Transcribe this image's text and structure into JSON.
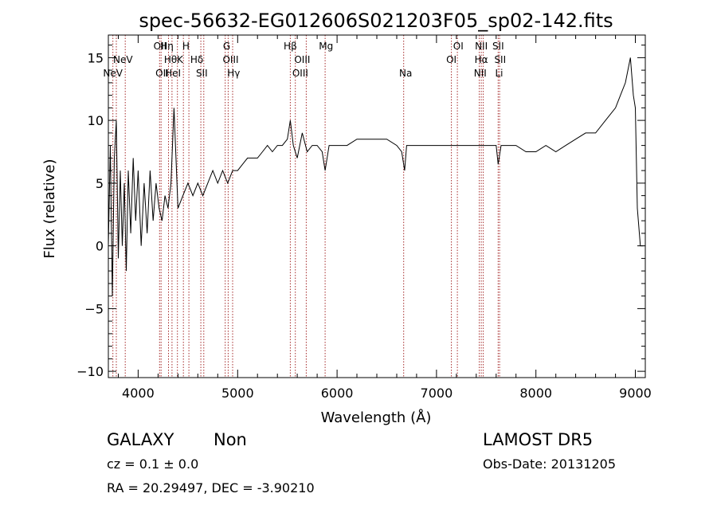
{
  "chart_data": {
    "type": "line",
    "title": "spec-56632-EG012606S021203F05_sp02-142.fits",
    "xlabel": "Wavelength (Å)",
    "ylabel": "Flux (relative)",
    "xlim": [
      3700,
      9100
    ],
    "ylim": [
      -10.5,
      16.8
    ],
    "x_ticks": [
      4000,
      5000,
      6000,
      7000,
      8000,
      9000
    ],
    "y_ticks": [
      -10,
      -5,
      0,
      5,
      10,
      15
    ],
    "grid": false,
    "line_color": "#000000",
    "marker_color": "#a52a2a",
    "series": [
      {
        "x": [
          3700,
          3720,
          3740,
          3760,
          3780,
          3800,
          3820,
          3840,
          3860,
          3880,
          3900,
          3925,
          3950,
          3975,
          4000,
          4030,
          4060,
          4090,
          4120,
          4150,
          4180,
          4210,
          4240,
          4270,
          4300,
          4330,
          4360,
          4400,
          4450,
          4500,
          4550,
          4600,
          4650,
          4700,
          4750,
          4800,
          4850,
          4900,
          4950,
          5000,
          5050,
          5100,
          5150,
          5200,
          5250,
          5300,
          5350,
          5400,
          5450,
          5500,
          5530,
          5560,
          5600,
          5650,
          5700,
          5750,
          5800,
          5850,
          5880,
          5920,
          6000,
          6100,
          6200,
          6300,
          6400,
          6500,
          6600,
          6650,
          6680,
          6700,
          6800,
          6900,
          7000,
          7100,
          7200,
          7300,
          7400,
          7500,
          7600,
          7620,
          7650,
          7700,
          7800,
          7900,
          8000,
          8100,
          8200,
          8300,
          8400,
          8500,
          8600,
          8700,
          8800,
          8850,
          8900,
          8950,
          8980,
          9000,
          9020,
          9050,
          9080
        ],
        "y": [
          0,
          8,
          -4,
          7,
          10,
          -1,
          6,
          0,
          5,
          -2,
          6,
          1,
          7,
          2,
          6,
          0,
          5,
          1,
          6,
          2,
          5,
          3,
          2,
          4,
          3,
          5,
          11,
          3,
          4,
          5,
          4,
          5,
          4,
          5,
          6,
          5,
          6,
          5,
          6,
          6,
          6.5,
          7,
          7,
          7,
          7.5,
          8,
          7.5,
          8,
          8,
          8.5,
          10,
          8,
          7,
          9,
          7.5,
          8,
          8,
          7.5,
          6,
          8,
          8,
          8,
          8.5,
          8.5,
          8.5,
          8.5,
          8,
          7.5,
          6,
          8,
          8,
          8,
          8,
          8,
          8,
          8,
          8,
          8,
          8,
          6.5,
          8,
          8,
          8,
          7.5,
          7.5,
          8,
          7.5,
          8,
          8.5,
          9,
          9,
          10,
          11,
          12,
          13,
          15,
          12,
          11,
          3,
          0,
          0
        ]
      }
    ],
    "lines": [
      {
        "label": "NeV",
        "x": 3746,
        "row": 2
      },
      {
        "label": "NeV",
        "x": 3847,
        "row": 1
      },
      {
        "label": "OII",
        "x": 4220,
        "row": 0
      },
      {
        "label": "OII",
        "x": 4240,
        "row": 2
      },
      {
        "label": "Hη",
        "x": 4290,
        "row": 0
      },
      {
        "label": "Hθ",
        "x": 4325,
        "row": 1
      },
      {
        "label": "HeI",
        "x": 4350,
        "row": 2
      },
      {
        "label": "K",
        "x": 4420,
        "row": 1
      },
      {
        "label": "H",
        "x": 4480,
        "row": 0
      },
      {
        "label": "Hδ",
        "x": 4590,
        "row": 1
      },
      {
        "label": "SII",
        "x": 4640,
        "row": 2
      },
      {
        "label": "G",
        "x": 4890,
        "row": 0
      },
      {
        "label": "OIII",
        "x": 4930,
        "row": 1
      },
      {
        "label": "Hγ",
        "x": 4960,
        "row": 2
      },
      {
        "label": "Hβ",
        "x": 5530,
        "row": 0
      },
      {
        "label": "OIII",
        "x": 5650,
        "row": 1
      },
      {
        "label": "OIII",
        "x": 5630,
        "row": 2
      },
      {
        "label": "Mg",
        "x": 5890,
        "row": 0
      },
      {
        "label": "Na",
        "x": 6690,
        "row": 2
      },
      {
        "label": "OI",
        "x": 7150,
        "row": 1
      },
      {
        "label": "OI",
        "x": 7220,
        "row": 0
      },
      {
        "label": "NII",
        "x": 7450,
        "row": 0
      },
      {
        "label": "Hα",
        "x": 7450,
        "row": 1
      },
      {
        "label": "NII",
        "x": 7440,
        "row": 2
      },
      {
        "label": "SII",
        "x": 7620,
        "row": 0
      },
      {
        "label": "SII",
        "x": 7640,
        "row": 1
      },
      {
        "label": "Li",
        "x": 7630,
        "row": 2
      }
    ],
    "marker_x": [
      3746,
      3780,
      3870,
      4215,
      4230,
      4305,
      4340,
      4395,
      4455,
      4510,
      4630,
      4660,
      4875,
      4905,
      4950,
      5530,
      5580,
      5690,
      5880,
      6670,
      7150,
      7210,
      7430,
      7450,
      7470,
      7620,
      7635
    ]
  },
  "info": {
    "object_class": "GALAXY",
    "subclass": "Non",
    "survey": "LAMOST DR5",
    "cz": "cz = 0.1 ± 0.0",
    "obs_date": "Obs-Date: 20131205",
    "coords": "RA =  20.29497, DEC =  -3.90210"
  }
}
